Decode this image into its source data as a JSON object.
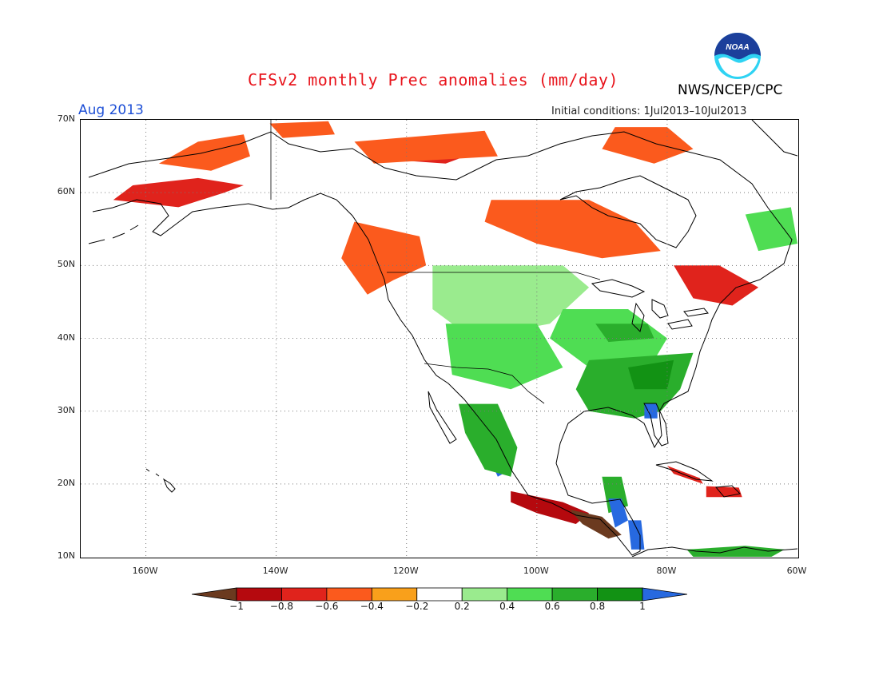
{
  "header": {
    "title": "CFSv2 monthly Prec anomalies (mm/day)",
    "period": "Aug 2013",
    "initial_conditions": "Initial conditions: 1Jul2013–10Jul2013",
    "agency": "NWS/NCEP/CPC",
    "logo_text": "NOAA"
  },
  "axes": {
    "lat_labels": [
      "70N",
      "60N",
      "50N",
      "40N",
      "30N",
      "20N",
      "10N"
    ],
    "lon_labels": [
      "160W",
      "140W",
      "120W",
      "100W",
      "80W",
      "60W"
    ],
    "lat_range": [
      10,
      70
    ],
    "lon_range": [
      -170,
      -60
    ]
  },
  "legend": {
    "labels": [
      "−1",
      "−0.8",
      "−0.6",
      "−0.4",
      "−0.2",
      "0.2",
      "0.4",
      "0.6",
      "0.8",
      "1"
    ],
    "colors": [
      "#6b3a1f",
      "#b5090e",
      "#e0231c",
      "#fb5a1d",
      "#f9a01b",
      "#ffffff",
      "#9aeb8e",
      "#4fdd53",
      "#2aae2c",
      "#129214",
      "#2769e0"
    ]
  },
  "colors": {
    "title": "#e8141c",
    "period": "#1d4fd6",
    "noaa_blue": "#1c3f9b",
    "noaa_cyan": "#2fd3f3"
  },
  "regions": [
    {
      "name": "alaska-south-coast",
      "category": "-0.6",
      "points": [
        [
          -165,
          59
        ],
        [
          -155,
          58
        ],
        [
          -148,
          60
        ],
        [
          -145,
          61
        ],
        [
          -152,
          62
        ],
        [
          -162,
          61
        ]
      ]
    },
    {
      "name": "alaska-interior",
      "category": "-0.4",
      "points": [
        [
          -158,
          64
        ],
        [
          -152,
          67
        ],
        [
          -145,
          68
        ],
        [
          -144,
          65
        ],
        [
          -150,
          63
        ]
      ]
    },
    {
      "name": "yukon-north",
      "category": "-0.4",
      "points": [
        [
          -141,
          69.5
        ],
        [
          -132,
          69.8
        ],
        [
          -131,
          68
        ],
        [
          -139,
          67.5
        ]
      ]
    },
    {
      "name": "nwt-north",
      "category": "-0.6",
      "points": [
        [
          -125,
          66
        ],
        [
          -112,
          67.5
        ],
        [
          -108,
          66
        ],
        [
          -114,
          64
        ],
        [
          -122,
          64.5
        ]
      ]
    },
    {
      "name": "nwt-east",
      "category": "-0.4",
      "points": [
        [
          -128,
          67
        ],
        [
          -108,
          68.5
        ],
        [
          -106,
          65
        ],
        [
          -125,
          64
        ]
      ]
    },
    {
      "name": "hudson-bay-west",
      "category": "-0.8",
      "points": [
        [
          -103,
          58
        ],
        [
          -96,
          58
        ],
        [
          -90,
          56
        ],
        [
          -86,
          55.5
        ],
        [
          -92,
          54
        ],
        [
          -100,
          55
        ]
      ]
    },
    {
      "name": "hudson-bay-region",
      "category": "-0.4",
      "points": [
        [
          -107,
          59
        ],
        [
          -92,
          59
        ],
        [
          -85,
          56
        ],
        [
          -81,
          52
        ],
        [
          -90,
          51
        ],
        [
          -100,
          53
        ],
        [
          -108,
          56
        ]
      ]
    },
    {
      "name": "bc-coast",
      "category": "-0.6",
      "points": [
        [
          -128,
          54
        ],
        [
          -122,
          53
        ],
        [
          -121,
          49
        ],
        [
          -124,
          47
        ],
        [
          -128,
          50
        ]
      ]
    },
    {
      "name": "bc-interior",
      "category": "-0.4",
      "points": [
        [
          -128,
          56
        ],
        [
          -118,
          54
        ],
        [
          -117,
          50
        ],
        [
          -122,
          48
        ],
        [
          -126,
          46
        ],
        [
          -130,
          51
        ]
      ]
    },
    {
      "name": "northern-quebec",
      "category": "-0.4",
      "points": [
        [
          -88,
          69
        ],
        [
          -80,
          69
        ],
        [
          -76,
          66
        ],
        [
          -82,
          64
        ],
        [
          -90,
          66
        ]
      ]
    },
    {
      "name": "quebec-maritimes",
      "category": "-0.6",
      "points": [
        [
          -79,
          50
        ],
        [
          -72,
          50
        ],
        [
          -66,
          47
        ],
        [
          -70,
          44.5
        ],
        [
          -76,
          45.5
        ]
      ]
    },
    {
      "name": "labrador-east",
      "category": "0.4",
      "points": [
        [
          -68,
          57
        ],
        [
          -61,
          58
        ],
        [
          -60,
          53
        ],
        [
          -66,
          52
        ]
      ]
    },
    {
      "name": "northern-plains",
      "category": "0.2",
      "points": [
        [
          -116,
          50
        ],
        [
          -96,
          50
        ],
        [
          -92,
          47
        ],
        [
          -98,
          42
        ],
        [
          -110,
          40
        ],
        [
          -116,
          44
        ]
      ]
    },
    {
      "name": "great-plains-south",
      "category": "0.4",
      "points": [
        [
          -114,
          42
        ],
        [
          -100,
          42
        ],
        [
          -96,
          36
        ],
        [
          -104,
          33
        ],
        [
          -113,
          35
        ]
      ]
    },
    {
      "name": "midwest",
      "category": "0.4",
      "points": [
        [
          -96,
          44
        ],
        [
          -86,
          44
        ],
        [
          -80,
          40
        ],
        [
          -82,
          37
        ],
        [
          -92,
          36
        ],
        [
          -98,
          40
        ]
      ]
    },
    {
      "name": "southeast-us",
      "category": "0.6",
      "points": [
        [
          -92,
          37
        ],
        [
          -76,
          38
        ],
        [
          -78,
          33
        ],
        [
          -81,
          30
        ],
        [
          -85,
          29
        ],
        [
          -92,
          30
        ],
        [
          -94,
          33
        ]
      ]
    },
    {
      "name": "appalachia",
      "category": "0.8",
      "points": [
        [
          -86,
          36
        ],
        [
          -79,
          37
        ],
        [
          -80,
          33
        ],
        [
          -85,
          33
        ]
      ]
    },
    {
      "name": "florida-panhandle",
      "category": "1",
      "points": [
        [
          -83.5,
          31
        ],
        [
          -81.5,
          31
        ],
        [
          -81.5,
          29
        ],
        [
          -83.5,
          29
        ]
      ]
    },
    {
      "name": "ohio-valley",
      "category": "0.6",
      "points": [
        [
          -91,
          42
        ],
        [
          -83,
          42
        ],
        [
          -82,
          40
        ],
        [
          -89,
          39.5
        ]
      ]
    },
    {
      "name": "sierra-madre-occidental",
      "category": "1",
      "points": [
        [
          -110,
          29
        ],
        [
          -107,
          28
        ],
        [
          -104,
          22
        ],
        [
          -106,
          21
        ],
        [
          -108,
          25
        ]
      ]
    },
    {
      "name": "sonora",
      "category": "0.6",
      "points": [
        [
          -112,
          31
        ],
        [
          -106,
          31
        ],
        [
          -103,
          25
        ],
        [
          -104,
          21
        ],
        [
          -108,
          22
        ],
        [
          -111,
          27
        ]
      ]
    },
    {
      "name": "southern-mexico",
      "category": "-0.8",
      "points": [
        [
          -104,
          19
        ],
        [
          -96,
          17.5
        ],
        [
          -92,
          16
        ],
        [
          -94,
          14.5
        ],
        [
          -100,
          16
        ],
        [
          -104,
          17.5
        ]
      ]
    },
    {
      "name": "central-america-dry",
      "category": "-1",
      "points": [
        [
          -95,
          16.5
        ],
        [
          -90,
          15.5
        ],
        [
          -87,
          13
        ],
        [
          -89,
          12.5
        ],
        [
          -93,
          14.5
        ]
      ]
    },
    {
      "name": "yucatan",
      "category": "0.6",
      "points": [
        [
          -90,
          21
        ],
        [
          -87,
          21
        ],
        [
          -86,
          17
        ],
        [
          -89,
          16
        ]
      ]
    },
    {
      "name": "honduras-wet",
      "category": "1",
      "points": [
        [
          -89,
          18
        ],
        [
          -87,
          18
        ],
        [
          -86,
          15
        ],
        [
          -88,
          14
        ]
      ]
    },
    {
      "name": "nicaragua-wet",
      "category": "1",
      "points": [
        [
          -86,
          15
        ],
        [
          -84,
          15
        ],
        [
          -83.5,
          11
        ],
        [
          -85.5,
          11
        ]
      ]
    },
    {
      "name": "hispaniola",
      "category": "-0.6",
      "points": [
        [
          -74,
          19.7
        ],
        [
          -69,
          19.5
        ],
        [
          -68.5,
          18.2
        ],
        [
          -74,
          18.2
        ]
      ]
    },
    {
      "name": "cuba-east",
      "category": "-0.6",
      "points": [
        [
          -80,
          22.5
        ],
        [
          -75,
          20.8
        ],
        [
          -74.5,
          20
        ],
        [
          -79,
          21.4
        ]
      ]
    },
    {
      "name": "northern-south-america",
      "category": "0.6",
      "points": [
        [
          -77,
          11
        ],
        [
          -68,
          11.5
        ],
        [
          -62,
          11
        ],
        [
          -64,
          10
        ],
        [
          -76,
          10
        ]
      ]
    }
  ]
}
